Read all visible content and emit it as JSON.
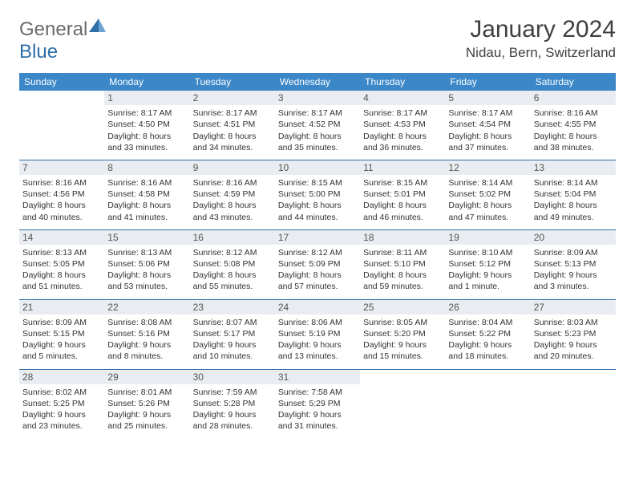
{
  "logo": {
    "general": "General",
    "blue": "Blue"
  },
  "title": "January 2024",
  "location": "Nidau, Bern, Switzerland",
  "colors": {
    "header_bg": "#3b87c8",
    "header_fg": "#ffffff",
    "row_border": "#2f6fa8",
    "daynum_bg": "#e9edf1",
    "logo_blue": "#2f6fa8"
  },
  "weekdays": [
    "Sunday",
    "Monday",
    "Tuesday",
    "Wednesday",
    "Thursday",
    "Friday",
    "Saturday"
  ],
  "weeks": [
    [
      null,
      {
        "n": "1",
        "l": [
          "Sunrise: 8:17 AM",
          "Sunset: 4:50 PM",
          "Daylight: 8 hours",
          "and 33 minutes."
        ]
      },
      {
        "n": "2",
        "l": [
          "Sunrise: 8:17 AM",
          "Sunset: 4:51 PM",
          "Daylight: 8 hours",
          "and 34 minutes."
        ]
      },
      {
        "n": "3",
        "l": [
          "Sunrise: 8:17 AM",
          "Sunset: 4:52 PM",
          "Daylight: 8 hours",
          "and 35 minutes."
        ]
      },
      {
        "n": "4",
        "l": [
          "Sunrise: 8:17 AM",
          "Sunset: 4:53 PM",
          "Daylight: 8 hours",
          "and 36 minutes."
        ]
      },
      {
        "n": "5",
        "l": [
          "Sunrise: 8:17 AM",
          "Sunset: 4:54 PM",
          "Daylight: 8 hours",
          "and 37 minutes."
        ]
      },
      {
        "n": "6",
        "l": [
          "Sunrise: 8:16 AM",
          "Sunset: 4:55 PM",
          "Daylight: 8 hours",
          "and 38 minutes."
        ]
      }
    ],
    [
      {
        "n": "7",
        "l": [
          "Sunrise: 8:16 AM",
          "Sunset: 4:56 PM",
          "Daylight: 8 hours",
          "and 40 minutes."
        ]
      },
      {
        "n": "8",
        "l": [
          "Sunrise: 8:16 AM",
          "Sunset: 4:58 PM",
          "Daylight: 8 hours",
          "and 41 minutes."
        ]
      },
      {
        "n": "9",
        "l": [
          "Sunrise: 8:16 AM",
          "Sunset: 4:59 PM",
          "Daylight: 8 hours",
          "and 43 minutes."
        ]
      },
      {
        "n": "10",
        "l": [
          "Sunrise: 8:15 AM",
          "Sunset: 5:00 PM",
          "Daylight: 8 hours",
          "and 44 minutes."
        ]
      },
      {
        "n": "11",
        "l": [
          "Sunrise: 8:15 AM",
          "Sunset: 5:01 PM",
          "Daylight: 8 hours",
          "and 46 minutes."
        ]
      },
      {
        "n": "12",
        "l": [
          "Sunrise: 8:14 AM",
          "Sunset: 5:02 PM",
          "Daylight: 8 hours",
          "and 47 minutes."
        ]
      },
      {
        "n": "13",
        "l": [
          "Sunrise: 8:14 AM",
          "Sunset: 5:04 PM",
          "Daylight: 8 hours",
          "and 49 minutes."
        ]
      }
    ],
    [
      {
        "n": "14",
        "l": [
          "Sunrise: 8:13 AM",
          "Sunset: 5:05 PM",
          "Daylight: 8 hours",
          "and 51 minutes."
        ]
      },
      {
        "n": "15",
        "l": [
          "Sunrise: 8:13 AM",
          "Sunset: 5:06 PM",
          "Daylight: 8 hours",
          "and 53 minutes."
        ]
      },
      {
        "n": "16",
        "l": [
          "Sunrise: 8:12 AM",
          "Sunset: 5:08 PM",
          "Daylight: 8 hours",
          "and 55 minutes."
        ]
      },
      {
        "n": "17",
        "l": [
          "Sunrise: 8:12 AM",
          "Sunset: 5:09 PM",
          "Daylight: 8 hours",
          "and 57 minutes."
        ]
      },
      {
        "n": "18",
        "l": [
          "Sunrise: 8:11 AM",
          "Sunset: 5:10 PM",
          "Daylight: 8 hours",
          "and 59 minutes."
        ]
      },
      {
        "n": "19",
        "l": [
          "Sunrise: 8:10 AM",
          "Sunset: 5:12 PM",
          "Daylight: 9 hours",
          "and 1 minute."
        ]
      },
      {
        "n": "20",
        "l": [
          "Sunrise: 8:09 AM",
          "Sunset: 5:13 PM",
          "Daylight: 9 hours",
          "and 3 minutes."
        ]
      }
    ],
    [
      {
        "n": "21",
        "l": [
          "Sunrise: 8:09 AM",
          "Sunset: 5:15 PM",
          "Daylight: 9 hours",
          "and 5 minutes."
        ]
      },
      {
        "n": "22",
        "l": [
          "Sunrise: 8:08 AM",
          "Sunset: 5:16 PM",
          "Daylight: 9 hours",
          "and 8 minutes."
        ]
      },
      {
        "n": "23",
        "l": [
          "Sunrise: 8:07 AM",
          "Sunset: 5:17 PM",
          "Daylight: 9 hours",
          "and 10 minutes."
        ]
      },
      {
        "n": "24",
        "l": [
          "Sunrise: 8:06 AM",
          "Sunset: 5:19 PM",
          "Daylight: 9 hours",
          "and 13 minutes."
        ]
      },
      {
        "n": "25",
        "l": [
          "Sunrise: 8:05 AM",
          "Sunset: 5:20 PM",
          "Daylight: 9 hours",
          "and 15 minutes."
        ]
      },
      {
        "n": "26",
        "l": [
          "Sunrise: 8:04 AM",
          "Sunset: 5:22 PM",
          "Daylight: 9 hours",
          "and 18 minutes."
        ]
      },
      {
        "n": "27",
        "l": [
          "Sunrise: 8:03 AM",
          "Sunset: 5:23 PM",
          "Daylight: 9 hours",
          "and 20 minutes."
        ]
      }
    ],
    [
      {
        "n": "28",
        "l": [
          "Sunrise: 8:02 AM",
          "Sunset: 5:25 PM",
          "Daylight: 9 hours",
          "and 23 minutes."
        ]
      },
      {
        "n": "29",
        "l": [
          "Sunrise: 8:01 AM",
          "Sunset: 5:26 PM",
          "Daylight: 9 hours",
          "and 25 minutes."
        ]
      },
      {
        "n": "30",
        "l": [
          "Sunrise: 7:59 AM",
          "Sunset: 5:28 PM",
          "Daylight: 9 hours",
          "and 28 minutes."
        ]
      },
      {
        "n": "31",
        "l": [
          "Sunrise: 7:58 AM",
          "Sunset: 5:29 PM",
          "Daylight: 9 hours",
          "and 31 minutes."
        ]
      },
      null,
      null,
      null
    ]
  ]
}
